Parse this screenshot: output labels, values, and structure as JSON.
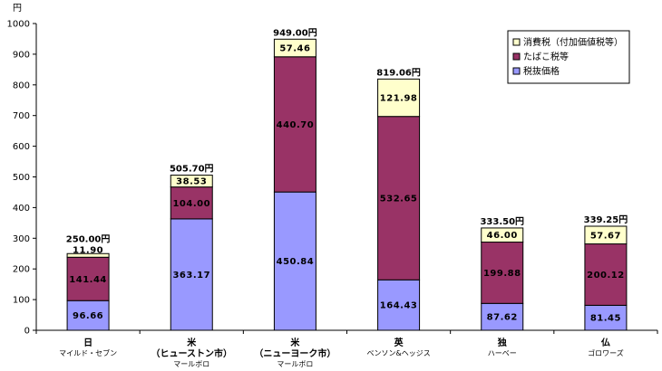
{
  "chart_data": {
    "type": "bar",
    "stacked": true,
    "unit_label": "円",
    "ylim": [
      0,
      1000
    ],
    "yticks": [
      0,
      100,
      200,
      300,
      400,
      500,
      600,
      700,
      800,
      900,
      1000
    ],
    "grid": false,
    "legend_position": "top-right",
    "categories": [
      {
        "country": "日",
        "city": "",
        "brand": "マイルド・セブン"
      },
      {
        "country": "米",
        "city": "（ヒューストン市）",
        "brand": "マールボロ"
      },
      {
        "country": "米",
        "city": "（ニューヨーク市）",
        "brand": "マールボロ"
      },
      {
        "country": "英",
        "city": "",
        "brand": "ベンソン&ヘッジス"
      },
      {
        "country": "独",
        "city": "",
        "brand": "ハーベー"
      },
      {
        "country": "仏",
        "city": "",
        "brand": "ゴロワーズ"
      }
    ],
    "series": [
      {
        "name": "税抜価格",
        "color": "#9999ff",
        "values": [
          96.66,
          363.17,
          450.84,
          164.43,
          87.62,
          81.45
        ],
        "labels": [
          "96.66",
          "363.17",
          "450.84",
          "164.43",
          "87.62",
          "81.45"
        ]
      },
      {
        "name": "たばこ税等",
        "color": "#993366",
        "values": [
          141.44,
          104.0,
          440.7,
          532.65,
          199.88,
          200.12
        ],
        "labels": [
          "141.44",
          "104.00",
          "440.70",
          "532.65",
          "199.88",
          "200.12"
        ]
      },
      {
        "name": "消費税（付加価値税等）",
        "color": "#ffffcc",
        "values": [
          11.9,
          38.53,
          57.46,
          121.98,
          46.0,
          57.67
        ],
        "labels": [
          "11.90",
          "38.53",
          "57.46",
          "121.98",
          "46.00",
          "57.67"
        ]
      }
    ],
    "totals": [
      "250.00円",
      "505.70円",
      "949.00円",
      "819.06円",
      "333.50円",
      "339.25円"
    ],
    "legend_order": [
      2,
      1,
      0
    ]
  }
}
